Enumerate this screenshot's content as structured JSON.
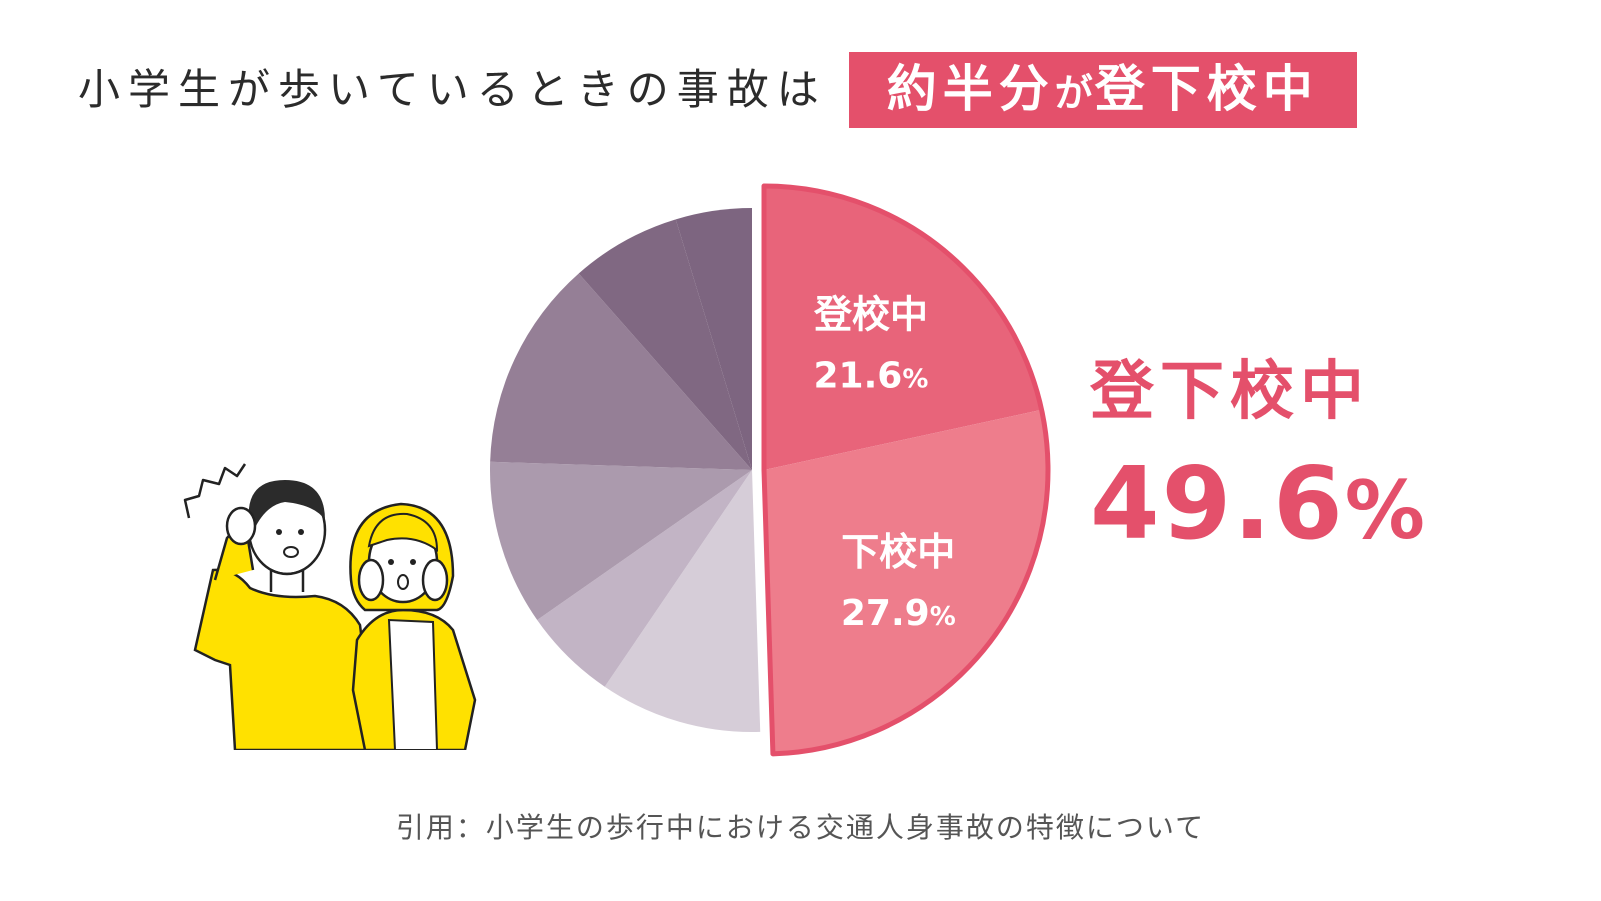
{
  "title": {
    "text": "小学生が歩いているときの事故は",
    "highlight_main": "約半分",
    "highlight_particle": "が",
    "highlight_end": "登下校中"
  },
  "callout": {
    "label": "登下校中",
    "value": "49.6",
    "unit": "%"
  },
  "source": "引用：小学生の歩行中における交通人身事故の特徴について",
  "colors": {
    "accent": "#e4506b",
    "slice_commute_to": "#e8647a",
    "slice_commute_from": "#ee7d8c",
    "outline": "#e4506b"
  },
  "chart_data": {
    "type": "pie",
    "start": "12 o'clock, clockwise",
    "exploded_group": "登下校中",
    "slices": [
      {
        "label": "登校中",
        "value": 21.6,
        "value_label": "21.6",
        "unit": "%",
        "color": "#e8647a"
      },
      {
        "label": "下校中",
        "value": 27.9,
        "value_label": "27.9",
        "unit": "%",
        "color": "#ee7d8c"
      },
      {
        "label": "",
        "value": 10.0,
        "color": "#d6cdd8"
      },
      {
        "label": "",
        "value": 5.8,
        "color": "#c2b4c5"
      },
      {
        "label": "",
        "value": 10.2,
        "color": "#ab9aad"
      },
      {
        "label": "",
        "value": 13.0,
        "color": "#957f96"
      },
      {
        "label": "",
        "value": 6.8,
        "color": "#806882"
      },
      {
        "label": "",
        "value": 4.7,
        "color": "#7d6580"
      }
    ]
  }
}
